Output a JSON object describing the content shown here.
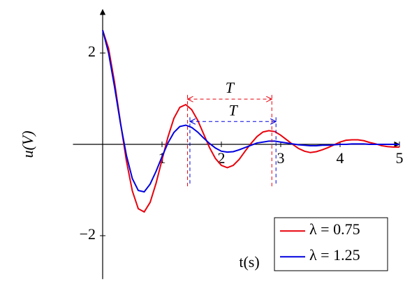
{
  "chart_data": {
    "type": "line",
    "x_label": "t(s)",
    "y_label": "u(V)",
    "xlim": [
      -0.5,
      5
    ],
    "ylim": [
      -2.95,
      2.95
    ],
    "xticks": [
      1,
      2,
      3,
      4,
      5
    ],
    "yticks": [
      {
        "value": -2,
        "label": "−2"
      },
      2
    ],
    "legend": "lower right",
    "x": [
      0,
      0.1,
      0.2,
      0.3,
      0.4,
      0.5,
      0.6,
      0.7,
      0.8,
      0.9,
      1,
      1.1,
      1.2,
      1.3,
      1.4,
      1.5,
      1.6,
      1.7,
      1.8,
      1.9,
      2,
      2.1,
      2.2,
      2.3,
      2.4,
      2.5,
      2.6,
      2.7,
      2.8,
      2.9,
      3,
      3.1,
      3.2,
      3.3,
      3.4,
      3.5,
      3.6,
      3.7,
      3.8,
      3.9,
      4,
      4.1,
      4.2,
      4.3,
      4.4,
      4.5,
      4.6,
      4.7,
      4.8,
      4.9,
      5
    ],
    "series": [
      {
        "name": "λ = 0.75",
        "color": "#e8000b",
        "values": [
          2.5,
          2.1,
          1.36,
          0.48,
          -0.36,
          -1.02,
          -1.41,
          -1.48,
          -1.27,
          -0.85,
          -0.34,
          0.16,
          0.57,
          0.81,
          0.87,
          0.76,
          0.53,
          0.23,
          -0.07,
          -0.31,
          -0.46,
          -0.51,
          -0.46,
          -0.33,
          -0.15,
          0.02,
          0.17,
          0.27,
          0.3,
          0.28,
          0.2,
          0.1,
          0,
          -0.09,
          -0.15,
          -0.18,
          -0.16,
          -0.12,
          -0.07,
          -0.01,
          0.05,
          0.09,
          0.1,
          0.1,
          0.08,
          0.04,
          0.01,
          -0.03,
          -0.05,
          -0.06,
          -0.06
        ]
      },
      {
        "name": "λ = 1.25",
        "color": "#0000e0",
        "values": [
          2.5,
          2.0,
          1.26,
          0.46,
          -0.24,
          -0.75,
          -1.01,
          -1.04,
          -0.87,
          -0.59,
          -0.27,
          0.03,
          0.26,
          0.39,
          0.42,
          0.37,
          0.27,
          0.14,
          0.02,
          -0.08,
          -0.15,
          -0.17,
          -0.16,
          -0.12,
          -0.07,
          -0.02,
          0.03,
          0.05,
          0.07,
          0.07,
          0.05,
          0.03,
          0.01,
          -0.01,
          -0.02,
          -0.03,
          -0.03,
          -0.02,
          -0.02,
          -0.01,
          0,
          0,
          0.01,
          0.01,
          0.01,
          0,
          0,
          0,
          0,
          0,
          0
        ]
      }
    ],
    "annotations": [
      {
        "label": "T",
        "color": "#e8000b",
        "x": [
          1.43,
          2.85
        ],
        "y": 0.99
      },
      {
        "label": "T",
        "color": "#0000e0",
        "x": [
          1.47,
          2.92
        ],
        "y": 0.5
      }
    ]
  }
}
